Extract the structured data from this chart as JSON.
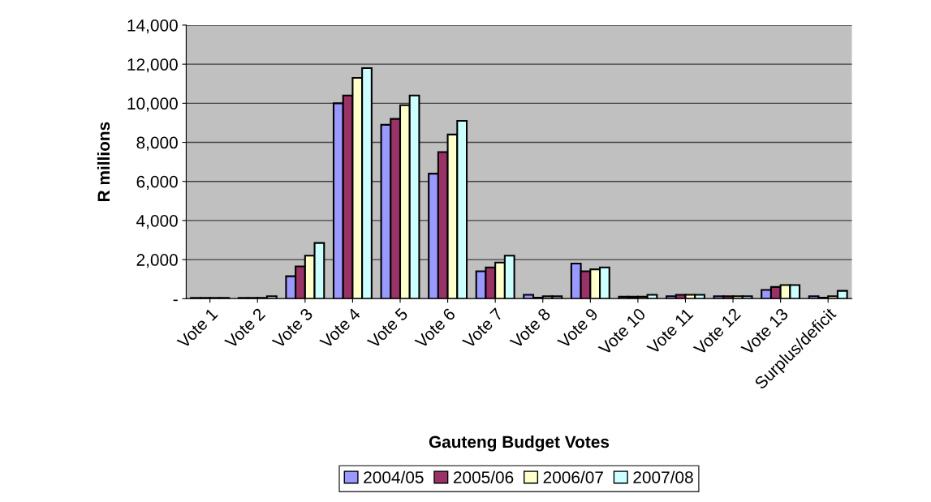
{
  "chart_data": {
    "type": "bar",
    "xlabel": "Gauteng Budget Votes",
    "ylabel": "R millions",
    "categories": [
      "Vote 1",
      "Vote 2",
      "Vote 3",
      "Vote 4",
      "Vote 5",
      "Vote 6",
      "Vote 7",
      "Vote 8",
      "Vote 9",
      "Vote 10",
      "Vote 11",
      "Vote 12",
      "Vote 13",
      "Surplus/deficit"
    ],
    "series": [
      {
        "name": "2004/05",
        "color": "#9999ff",
        "values": [
          40,
          40,
          1150,
          10000,
          8900,
          6400,
          1400,
          200,
          1800,
          100,
          130,
          130,
          450,
          130
        ]
      },
      {
        "name": "2005/06",
        "color": "#993366",
        "values": [
          40,
          40,
          1650,
          10400,
          9200,
          7500,
          1600,
          50,
          1400,
          100,
          200,
          130,
          600,
          50
        ]
      },
      {
        "name": "2006/07",
        "color": "#ffffcc",
        "values": [
          40,
          40,
          2200,
          11300,
          9900,
          8400,
          1850,
          120,
          1500,
          100,
          200,
          130,
          700,
          130
        ]
      },
      {
        "name": "2007/08",
        "color": "#ccffff",
        "values": [
          40,
          130,
          2850,
          11800,
          10400,
          9100,
          2200,
          120,
          1600,
          200,
          200,
          130,
          700,
          400
        ]
      }
    ],
    "ylim": [
      0,
      14000
    ],
    "yticks": [
      {
        "value": 0,
        "label": "-"
      },
      {
        "value": 2000,
        "label": "2,000"
      },
      {
        "value": 4000,
        "label": "4,000"
      },
      {
        "value": 6000,
        "label": "6,000"
      },
      {
        "value": 8000,
        "label": "8,000"
      },
      {
        "value": 10000,
        "label": "10,000"
      },
      {
        "value": 12000,
        "label": "12,000"
      },
      {
        "value": 14000,
        "label": "14,000"
      }
    ],
    "grid": "y",
    "legend": "bottom"
  }
}
